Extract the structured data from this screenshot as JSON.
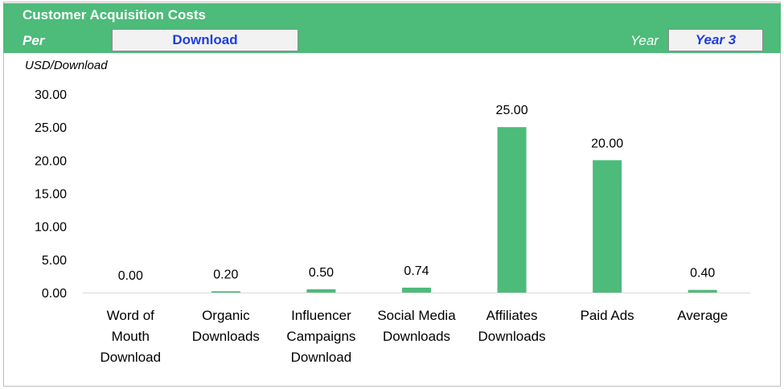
{
  "header": {
    "title": "Customer Acquisition Costs",
    "per_label": "Per",
    "per_value": "Download",
    "year_label": "Year",
    "year_value": "Year 3"
  },
  "colors": {
    "header_bg": "#4dbb7a",
    "bar": "#4dbb7a",
    "dropdown_text": "#1f3fe0"
  },
  "chart_data": {
    "type": "bar",
    "ylabel": "USD/Download",
    "ylim": [
      0,
      30
    ],
    "yticks": [
      "0.00",
      "5.00",
      "10.00",
      "15.00",
      "20.00",
      "25.00",
      "30.00"
    ],
    "grid": false,
    "categories": [
      [
        "Word of",
        "Mouth",
        "Download"
      ],
      [
        "Organic",
        "Downloads"
      ],
      [
        "Influencer",
        "Campaigns",
        "Download"
      ],
      [
        "Social Media",
        "Downloads"
      ],
      [
        "Affiliates",
        "Downloads"
      ],
      [
        "Paid Ads"
      ],
      [
        "Average"
      ]
    ],
    "values": [
      0.0,
      0.2,
      0.5,
      0.74,
      25.0,
      20.0,
      0.4
    ],
    "labels": [
      "0.00",
      "0.20",
      "0.50",
      "0.74",
      "25.00",
      "20.00",
      "0.40"
    ]
  }
}
